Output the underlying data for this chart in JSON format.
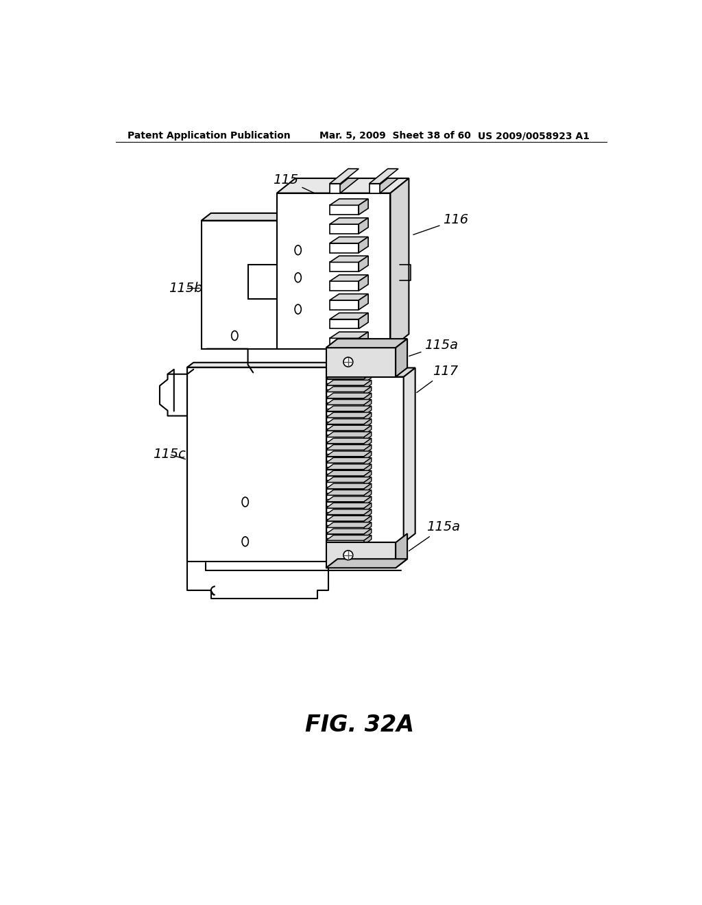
{
  "bg_color": "#ffffff",
  "header_left": "Patent Application Publication",
  "header_mid": "Mar. 5, 2009  Sheet 38 of 60",
  "header_right": "US 2009/0058923 A1",
  "figure_label": "FIG. 32A"
}
